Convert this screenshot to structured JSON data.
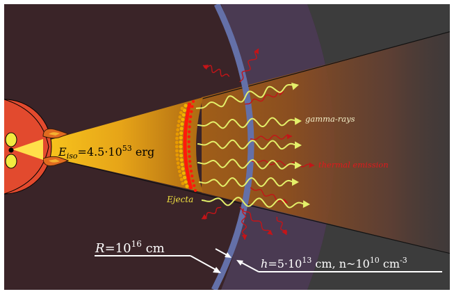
{
  "labels": {
    "energy": {
      "symbol": "E",
      "subscript": "iso",
      "prefix": "=4.5·10",
      "exponent": "53",
      "unit": " erg"
    },
    "gamma": "gamma-rays",
    "thermal": "thermal emission",
    "ejecta": "Ejecta",
    "radius": {
      "symbol": "R",
      "prefix": "=10",
      "exponent": "16",
      "unit": " cm"
    },
    "thickness": {
      "symbol": "h",
      "prefix": "=5·10",
      "exponent": "13",
      "middle": " cm, n~10",
      "exponent2": "10",
      "unit": " cm",
      "exponent3": "-3"
    }
  },
  "colors": {
    "background": "#3a2428",
    "outer_dark": "#3c3c3c",
    "cloud_tint": "#4a3a52",
    "shell": "#6470a8",
    "star": "#e24a2e",
    "cone_light": "#ffd21f",
    "cone_dark": "#a86412",
    "wave_yellow": "#e4f06a",
    "thermal_red": "#c41418",
    "ejecta_red": "#ff1a0a",
    "ejecta_yellow": "#f2b400",
    "label_white": "#ffffff",
    "label_gamma": "#f4f0c8",
    "label_thermal": "#e0181c",
    "label_ejecta": "#f0e040"
  }
}
